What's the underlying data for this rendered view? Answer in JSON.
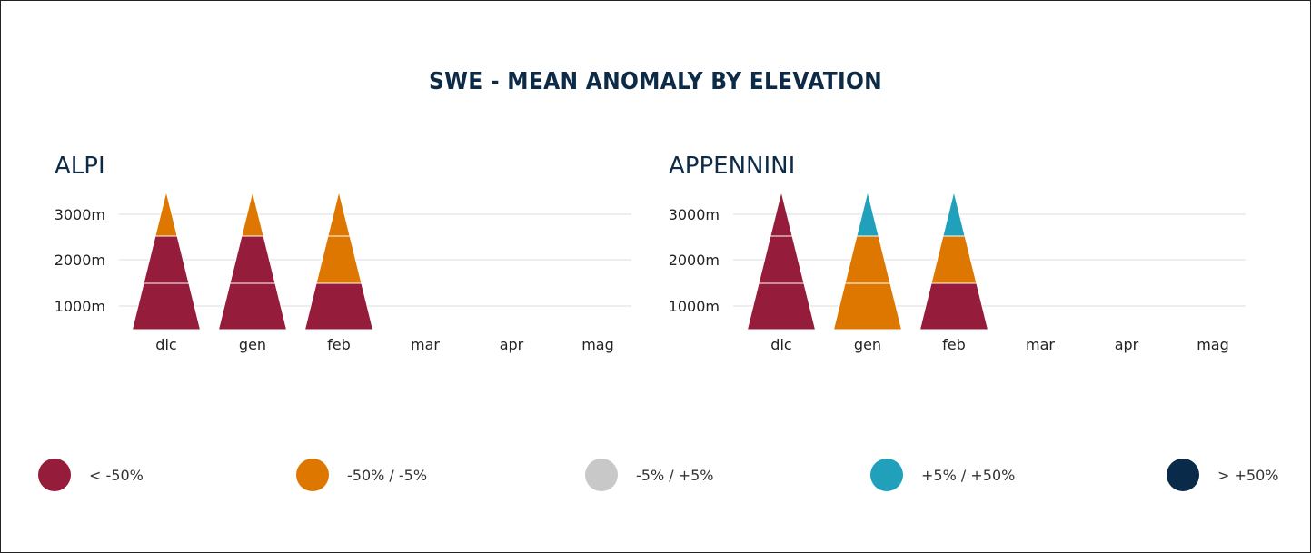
{
  "chart_data": [
    {
      "type": "pyramid-heatmap",
      "title": "ALPI",
      "categories": [
        "dic",
        "gen",
        "feb",
        "mar",
        "apr",
        "mag"
      ],
      "y_ticks": [
        "1000m",
        "2000m",
        "3000m"
      ],
      "bands": [
        "<1500m",
        "1500-2500m",
        ">2500m"
      ],
      "values": {
        "dic": [
          "< -50%",
          "< -50%",
          "-50% / -5%"
        ],
        "gen": [
          "< -50%",
          "< -50%",
          "-50% / -5%"
        ],
        "feb": [
          "< -50%",
          "-50% / -5%",
          "-50% / -5%"
        ]
      }
    },
    {
      "type": "pyramid-heatmap",
      "title": "APPENNINI",
      "categories": [
        "dic",
        "gen",
        "feb",
        "mar",
        "apr",
        "mag"
      ],
      "y_ticks": [
        "1000m",
        "2000m",
        "3000m"
      ],
      "bands": [
        "<1500m",
        "1500-2500m",
        ">2500m"
      ],
      "values": {
        "dic": [
          "< -50%",
          "< -50%",
          "< -50%"
        ],
        "gen": [
          "-50% / -5%",
          "-50% / -5%",
          "+5% / +50%"
        ],
        "feb": [
          "< -50%",
          "-50% / -5%",
          "+5% / +50%"
        ]
      }
    }
  ],
  "title": "SWE - MEAN ANOMALY BY ELEVATION",
  "legend": [
    {
      "label": "< -50%",
      "color": "#951c3a"
    },
    {
      "label": "-50% / -5%",
      "color": "#dd7700"
    },
    {
      "label": "-5% / +5%",
      "color": "#c8c8c8"
    },
    {
      "label": "+5% / +50%",
      "color": "#21a0bc"
    },
    {
      "label": "> +50%",
      "color": "#0a2a4a"
    }
  ]
}
